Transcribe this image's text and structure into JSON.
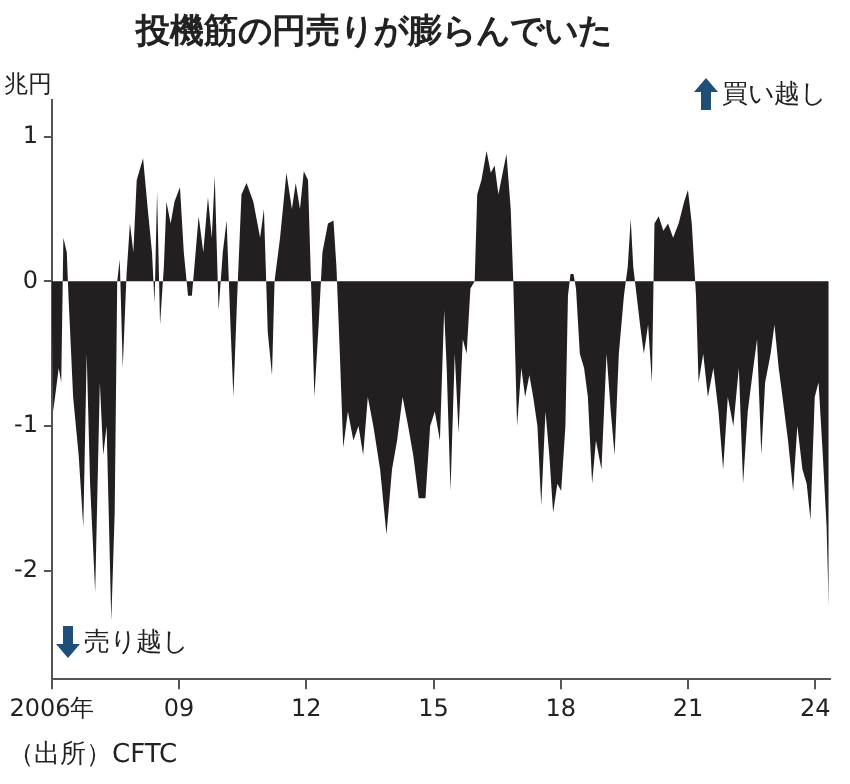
{
  "chart_data": {
    "type": "area",
    "title": "投機筋の円売りが膨らんでいた",
    "ylabel": "兆円",
    "annotations": [
      "買い越し",
      "売り越し",
      "（出所）CFTC"
    ],
    "x": [
      2006.0,
      2006.03,
      2006.16,
      2006.22,
      2006.27,
      2006.35,
      2006.39,
      2006.5,
      2006.63,
      2006.74,
      2006.82,
      2006.9,
      2007.02,
      2007.13,
      2007.21,
      2007.29,
      2007.4,
      2007.48,
      2007.54,
      2007.6,
      2007.67,
      2007.76,
      2007.84,
      2007.92,
      2008.0,
      2008.15,
      2008.26,
      2008.36,
      2008.42,
      2008.48,
      2008.55,
      2008.64,
      2008.7,
      2008.8,
      2008.89,
      2009.02,
      2009.11,
      2009.21,
      2009.3,
      2009.36,
      2009.46,
      2009.57,
      2009.68,
      2009.77,
      2009.84,
      2009.93,
      2010.03,
      2010.12,
      2010.21,
      2010.28,
      2010.37,
      2010.47,
      2010.59,
      2010.75,
      2010.91,
      2011.0,
      2011.09,
      2011.19,
      2011.25,
      2011.38,
      2011.53,
      2011.66,
      2011.75,
      2011.85,
      2011.94,
      2012.04,
      2012.1,
      2012.19,
      2012.29,
      2012.38,
      2012.51,
      2012.64,
      2012.71,
      2012.79,
      2012.87,
      2012.98,
      2013.11,
      2013.23,
      2013.34,
      2013.45,
      2013.58,
      2013.74,
      2013.89,
      2014.02,
      2014.14,
      2014.27,
      2014.4,
      2014.52,
      2014.65,
      2014.81,
      2014.92,
      2015.03,
      2015.15,
      2015.25,
      2015.31,
      2015.4,
      2015.5,
      2015.59,
      2015.69,
      2015.78,
      2015.87,
      2015.97,
      2016.03,
      2016.13,
      2016.25,
      2016.35,
      2016.44,
      2016.53,
      2016.63,
      2016.72,
      2016.82,
      2016.88,
      2016.97,
      2017.07,
      2017.16,
      2017.26,
      2017.35,
      2017.45,
      2017.54,
      2017.64,
      2017.73,
      2017.82,
      2017.92,
      2018.01,
      2018.11,
      2018.17,
      2018.23,
      2018.3,
      2018.36,
      2018.45,
      2018.55,
      2018.64,
      2018.74,
      2018.83,
      2018.96,
      2019.08,
      2019.18,
      2019.27,
      2019.37,
      2019.49,
      2019.58,
      2019.65,
      2019.71,
      2019.77,
      2019.87,
      2019.96,
      2020.06,
      2020.15,
      2020.21,
      2020.31,
      2020.42,
      2020.53,
      2020.65,
      2020.78,
      2020.91,
      2021.0,
      2021.09,
      2021.19,
      2021.25,
      2021.36,
      2021.47,
      2021.6,
      2021.72,
      2021.83,
      2021.94,
      2022.07,
      2022.2,
      2022.3,
      2022.41,
      2022.54,
      2022.63,
      2022.73,
      2022.82,
      2022.95,
      2023.04,
      2023.14,
      2023.23,
      2023.36,
      2023.48,
      2023.58,
      2023.7,
      2023.8,
      2023.89,
      2023.99,
      2024.08,
      2024.18,
      2024.27,
      2024.32
    ],
    "series": [
      {
        "color": "#231f20",
        "values": [
          -0.3,
          -0.9,
          -0.6,
          -0.7,
          0.3,
          0.2,
          -0.1,
          -0.8,
          -1.2,
          -1.7,
          -0.5,
          -1.4,
          -2.15,
          -0.7,
          -1.2,
          -1.0,
          -2.35,
          -1.6,
          0.0,
          0.15,
          -0.6,
          0.05,
          0.4,
          0.2,
          0.7,
          0.85,
          0.5,
          0.2,
          -0.15,
          0.62,
          -0.3,
          0.1,
          0.55,
          0.4,
          0.55,
          0.65,
          0.2,
          -0.1,
          -0.1,
          0.1,
          0.45,
          0.2,
          0.58,
          0.3,
          0.73,
          -0.2,
          0.2,
          0.42,
          -0.3,
          -0.8,
          -0.1,
          0.6,
          0.68,
          0.55,
          0.3,
          0.5,
          -0.35,
          -0.65,
          0.0,
          0.3,
          0.75,
          0.5,
          0.68,
          0.5,
          0.76,
          0.7,
          0.1,
          -0.8,
          -0.3,
          0.2,
          0.4,
          0.42,
          0.1,
          -0.5,
          -1.15,
          -0.9,
          -1.1,
          -1.0,
          -1.2,
          -0.8,
          -1.0,
          -1.3,
          -1.75,
          -1.3,
          -1.1,
          -0.8,
          -1.0,
          -1.2,
          -1.5,
          -1.5,
          -1.0,
          -0.9,
          -1.1,
          -0.2,
          -0.6,
          -1.45,
          -0.5,
          -1.05,
          -0.4,
          -0.5,
          -0.05,
          0.0,
          0.6,
          0.7,
          0.9,
          0.75,
          0.8,
          0.6,
          0.75,
          0.88,
          0.5,
          0.0,
          -1.0,
          -0.6,
          -0.8,
          -0.65,
          -0.8,
          -1.0,
          -1.55,
          -0.9,
          -1.2,
          -1.6,
          -1.4,
          -1.45,
          -1.0,
          -0.1,
          0.05,
          0.05,
          -0.05,
          -0.5,
          -0.6,
          -0.8,
          -1.4,
          -1.1,
          -1.3,
          -0.5,
          -0.9,
          -1.2,
          -0.5,
          -0.1,
          0.1,
          0.43,
          0.1,
          -0.05,
          -0.3,
          -0.5,
          -0.3,
          -0.7,
          0.4,
          0.45,
          0.35,
          0.4,
          0.3,
          0.4,
          0.55,
          0.63,
          0.4,
          -0.1,
          -0.7,
          -0.5,
          -0.8,
          -0.6,
          -0.9,
          -1.3,
          -0.8,
          -1.0,
          -0.6,
          -1.4,
          -0.9,
          -0.6,
          -0.4,
          -1.2,
          -0.7,
          -0.5,
          -0.3,
          -0.6,
          -0.8,
          -1.1,
          -1.45,
          -1.0,
          -1.3,
          -1.4,
          -1.65,
          -0.8,
          -0.7,
          -1.2,
          -1.7,
          -2.25
        ]
      }
    ],
    "xlim": [
      2006,
      2024.35
    ],
    "xticks": [
      {
        "value": 2006,
        "label": "2006年"
      },
      {
        "value": 2009,
        "label": "09"
      },
      {
        "value": 2012,
        "label": "12"
      },
      {
        "value": 2015,
        "label": "15"
      },
      {
        "value": 2018,
        "label": "18"
      },
      {
        "value": 2021,
        "label": "21"
      },
      {
        "value": 2024,
        "label": "24"
      }
    ],
    "ylim": [
      -2.75,
      1.25
    ],
    "yticks": [
      -2,
      -1,
      0,
      1
    ],
    "grid": false,
    "legend": false
  }
}
